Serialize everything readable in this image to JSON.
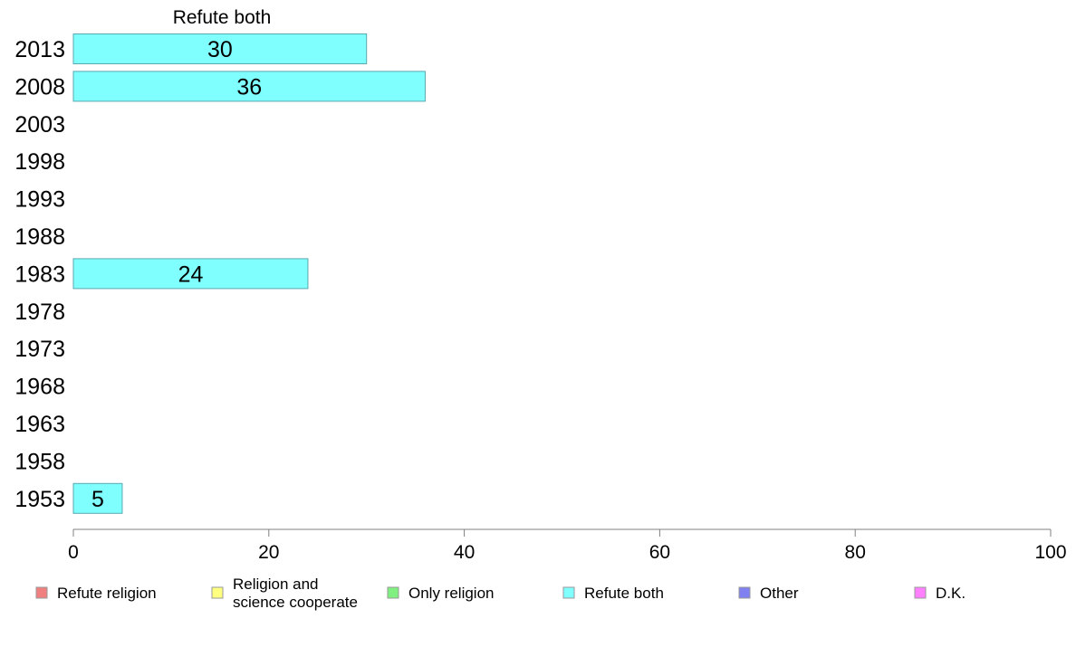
{
  "chart_data": {
    "type": "bar",
    "orientation": "horizontal",
    "title": "Refute both",
    "categories": [
      "2013",
      "2008",
      "2003",
      "1998",
      "1993",
      "1988",
      "1983",
      "1978",
      "1973",
      "1968",
      "1963",
      "1958",
      "1953"
    ],
    "series": [
      {
        "name": "Refute both",
        "color": "#80ffff",
        "values": [
          30,
          36,
          null,
          null,
          null,
          null,
          24,
          null,
          null,
          null,
          null,
          null,
          5
        ],
        "value_labels": [
          "30",
          "36",
          "",
          "",
          "",
          "",
          "24",
          "",
          "",
          "",
          "",
          "",
          "5"
        ]
      }
    ],
    "xlim": [
      0,
      100
    ],
    "xticks": [
      0,
      20,
      40,
      60,
      80,
      100
    ],
    "xtick_labels": [
      "0",
      "20",
      "40",
      "60",
      "80",
      "100"
    ],
    "grid": false,
    "legend": {
      "placement": "bottom",
      "items": [
        {
          "label_lines": [
            "Refute religion"
          ],
          "color": "#f08080"
        },
        {
          "label_lines": [
            "Religion and",
            "science cooperate"
          ],
          "color": "#ffff80"
        },
        {
          "label_lines": [
            "Only religion"
          ],
          "color": "#80f080"
        },
        {
          "label_lines": [
            "Refute both"
          ],
          "color": "#80ffff"
        },
        {
          "label_lines": [
            "Other"
          ],
          "color": "#8080f0"
        },
        {
          "label_lines": [
            "D.K."
          ],
          "color": "#ff80ff"
        }
      ]
    }
  }
}
